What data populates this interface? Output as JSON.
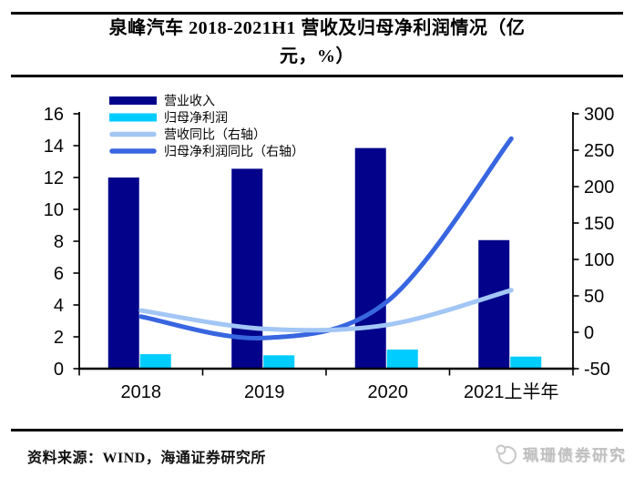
{
  "header": {
    "title_line1": "泉峰汽车 2018-2021H1 营收及归母净利润情况（亿",
    "title_line2": "元，%）"
  },
  "chart_data": {
    "type": "bar",
    "title": "泉峰汽车 2018-2021H1 营收及归母净利润情况（亿元，%）",
    "categories": [
      "2018",
      "2019",
      "2020",
      "2021上半年"
    ],
    "series": [
      {
        "name": "营业收入",
        "type": "bar",
        "axis": "left",
        "color": "#02028A",
        "values": [
          12.0,
          12.55,
          13.85,
          8.07
        ]
      },
      {
        "name": "归母净利润",
        "type": "bar",
        "axis": "left",
        "color": "#00CCFF",
        "values": [
          0.91,
          0.84,
          1.2,
          0.76
        ]
      },
      {
        "name": "营收同比（右轴）",
        "type": "line",
        "axis": "right",
        "color": "#A2C6F5",
        "values": [
          29.9,
          4.6,
          10.3,
          57.7
        ]
      },
      {
        "name": "归母净利润同比（右轴）",
        "type": "line",
        "axis": "right",
        "color": "#3865E0",
        "values": [
          21.5,
          -7.9,
          43.0,
          265.9
        ]
      }
    ],
    "left_axis": {
      "min": 0,
      "max": 16,
      "step": 2
    },
    "right_axis": {
      "min": -50,
      "max": 300,
      "step": 50
    },
    "legend_position": "top-left",
    "grid": false
  },
  "footer": {
    "source": "资料来源：WIND，海通证券研究所",
    "watermark": "珮珊债券研究"
  },
  "colors": {
    "bar_revenue": "#02028A",
    "bar_net_profit": "#00CCFF",
    "line_revenue_yoy": "#A2C6F5",
    "line_profit_yoy": "#3865E0",
    "rule": "#000000",
    "watermark_gray": "#BFBFBF"
  }
}
